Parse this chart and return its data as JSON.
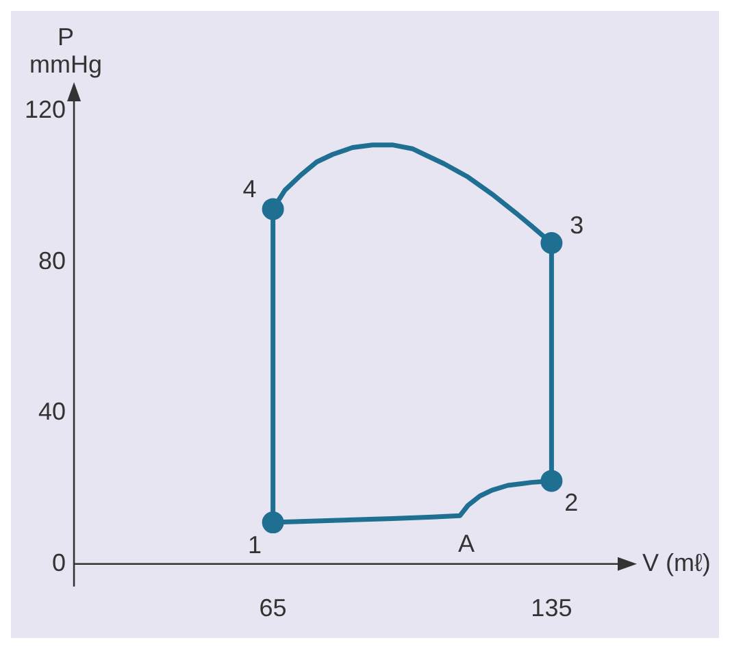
{
  "chart_data": {
    "type": "line",
    "xlabel": "V (mℓ)",
    "ylabel": "P mmHg",
    "xlim": [
      15,
      153
    ],
    "ylim": [
      -6,
      124
    ],
    "xticks": [
      65,
      135
    ],
    "yticks": [
      0,
      40,
      80,
      120
    ],
    "series": [
      {
        "color": "#1f6f93",
        "marker": "none",
        "x": [
          65,
          65,
          68,
          72,
          76,
          80,
          85,
          90,
          95,
          100,
          103,
          108,
          114,
          120,
          126,
          130,
          135,
          135
        ],
        "values": [
          11,
          94,
          99,
          103,
          106.5,
          108.5,
          110.3,
          111,
          111,
          110,
          108.5,
          106,
          102.5,
          98,
          93,
          89.5,
          85,
          22
        ]
      },
      {
        "color": "#1f6f93",
        "marker": "none",
        "x": [
          65,
          80,
          95,
          105,
          112,
          114,
          117,
          120,
          124,
          130,
          135
        ],
        "values": [
          11,
          11.5,
          12,
          12.4,
          12.8,
          15.5,
          18,
          19.5,
          20.8,
          21.6,
          22
        ]
      },
      {
        "type": "scatter",
        "color": "#1f6f93",
        "marker": "circle",
        "x": [
          65,
          135,
          135,
          65
        ],
        "values": [
          11,
          22,
          85,
          94
        ]
      }
    ],
    "annotations": [
      {
        "text": "1",
        "x": 65,
        "y": 11
      },
      {
        "text": "2",
        "x": 135,
        "y": 22
      },
      {
        "text": "3",
        "x": 135,
        "y": 85
      },
      {
        "text": "4",
        "x": 65,
        "y": 94
      },
      {
        "text": "A",
        "x": 112,
        "y": 12.8
      }
    ]
  }
}
